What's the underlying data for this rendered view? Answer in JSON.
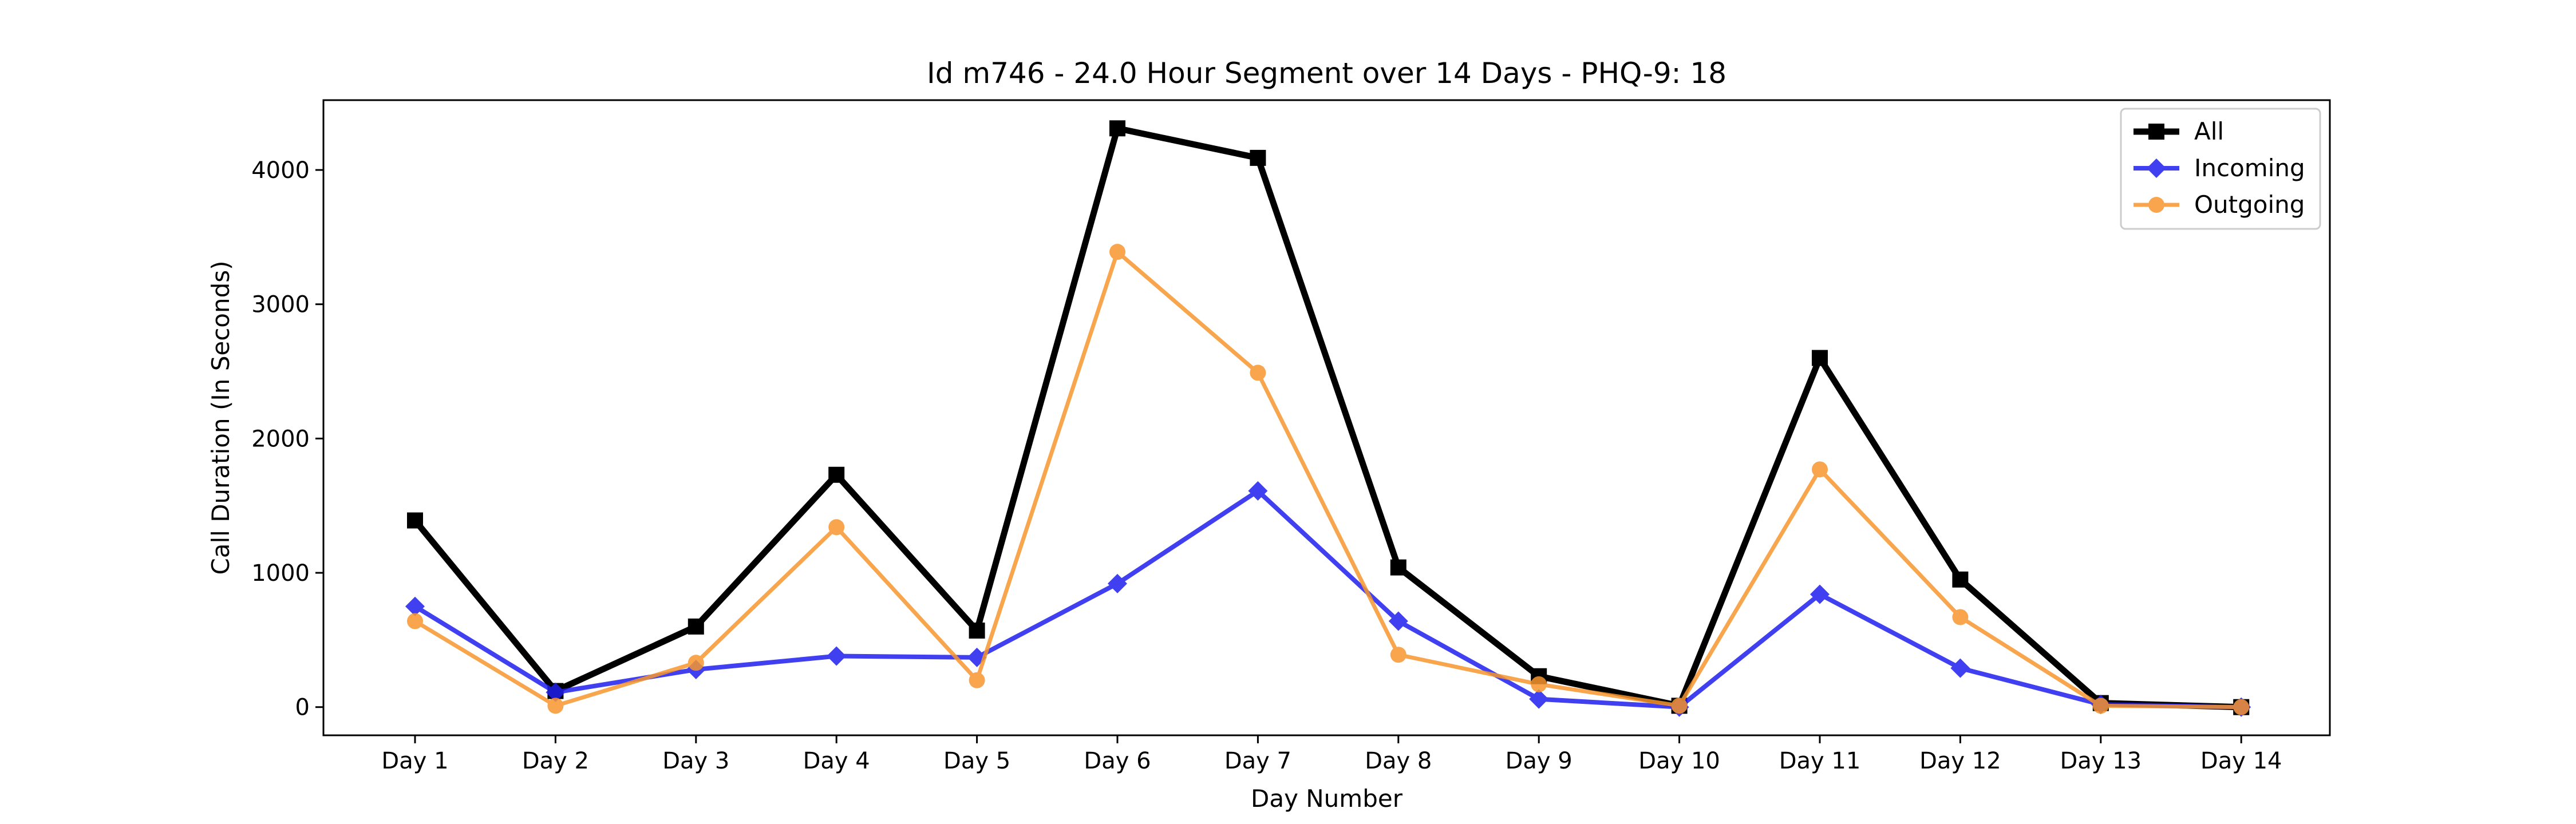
{
  "chart_data": {
    "type": "line",
    "title": "Id m746 - 24.0 Hour Segment over 14 Days - PHQ-9: 18",
    "xlabel": "Day Number",
    "ylabel": "Call Duration (In Seconds)",
    "categories": [
      "Day 1",
      "Day 2",
      "Day 3",
      "Day 4",
      "Day 5",
      "Day 6",
      "Day 7",
      "Day 8",
      "Day 9",
      "Day 10",
      "Day 11",
      "Day 12",
      "Day 13",
      "Day 14"
    ],
    "ylim": [
      -210,
      4520
    ],
    "yticks": [
      0,
      1000,
      2000,
      3000,
      4000
    ],
    "grid": false,
    "legend_position": "top-right",
    "series": [
      {
        "name": "All",
        "color": "#000000",
        "marker": "square",
        "values": [
          1390,
          120,
          600,
          1730,
          570,
          4310,
          4090,
          1040,
          230,
          10,
          2600,
          950,
          30,
          0
        ]
      },
      {
        "name": "Incoming",
        "color": "#1f1fee",
        "marker": "diamond",
        "values": [
          750,
          110,
          280,
          380,
          370,
          920,
          1610,
          640,
          60,
          0,
          840,
          290,
          20,
          0
        ]
      },
      {
        "name": "Outgoing",
        "color": "#f7962e",
        "marker": "circle",
        "values": [
          640,
          10,
          330,
          1340,
          200,
          3390,
          2490,
          390,
          170,
          10,
          1770,
          670,
          10,
          0
        ]
      }
    ]
  }
}
